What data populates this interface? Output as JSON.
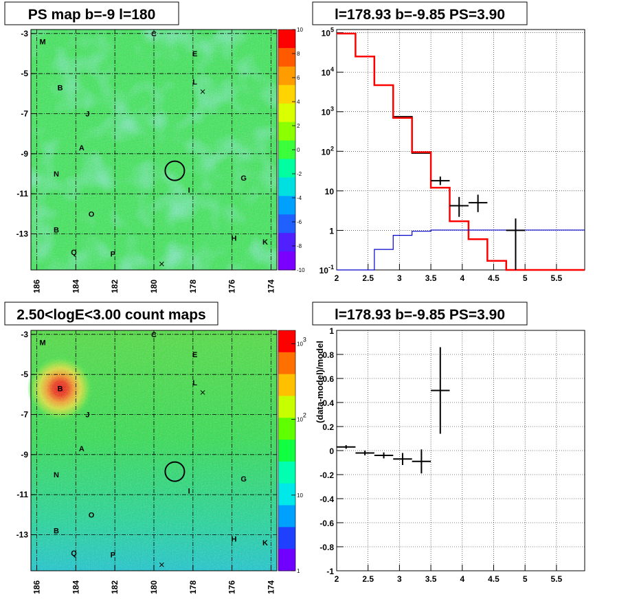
{
  "chart_data": [
    {
      "type": "heatmap",
      "title": "PS map b=-9 l=180",
      "x_ticks": [
        "186",
        "184",
        "182",
        "180",
        "178",
        "176",
        "174"
      ],
      "y_ticks": [
        "-3",
        "-5",
        "-7",
        "-9",
        "-11",
        "-13"
      ],
      "xlim": [
        186.3,
        173.7
      ],
      "ylim": [
        -14.8,
        -2.8
      ],
      "colorbar": {
        "scale": "linear",
        "range": [
          -10,
          10
        ],
        "ticks": [
          "10",
          "8",
          "6",
          "4",
          "2",
          "0",
          "-2",
          "-4",
          "-6",
          "-8",
          "-10"
        ]
      },
      "grid": true,
      "circle": {
        "l": 178.93,
        "b": -9.85
      },
      "source_labels": [
        {
          "text": "M",
          "l": 185.7,
          "b": -3.4
        },
        {
          "text": "C",
          "l": 180.0,
          "b": -3.0
        },
        {
          "text": "E",
          "l": 177.9,
          "b": -4.0
        },
        {
          "text": "L",
          "l": 177.9,
          "b": -5.4
        },
        {
          "text": "B",
          "l": 184.8,
          "b": -5.7
        },
        {
          "text": "J",
          "l": 183.4,
          "b": -7.0
        },
        {
          "text": "A",
          "l": 183.7,
          "b": -8.7
        },
        {
          "text": "N",
          "l": 185.0,
          "b": -10.0
        },
        {
          "text": "G",
          "l": 175.4,
          "b": -10.2
        },
        {
          "text": "I",
          "l": 178.2,
          "b": -10.8
        },
        {
          "text": "O",
          "l": 183.2,
          "b": -12.0
        },
        {
          "text": "B",
          "l": 185.0,
          "b": -12.8
        },
        {
          "text": "H",
          "l": 175.9,
          "b": -13.2
        },
        {
          "text": "K",
          "l": 174.3,
          "b": -13.4
        },
        {
          "text": "Q",
          "l": 184.1,
          "b": -13.9
        },
        {
          "text": "P",
          "l": 182.1,
          "b": -14.0
        }
      ],
      "crosses": [
        {
          "l": 177.5,
          "b": -5.9
        },
        {
          "l": 179.6,
          "b": -14.5
        }
      ]
    },
    {
      "type": "line",
      "title": "l=178.93 b=-9.85 PS=3.90",
      "xlim": [
        2.0,
        5.95
      ],
      "ylim": [
        0.1,
        120000
      ],
      "y_scale": "log",
      "x_ticks": [
        "2",
        "2.5",
        "3",
        "3.5",
        "4",
        "4.5",
        "5",
        "5.5"
      ],
      "y_ticks": [
        "10^-1",
        "1",
        "10",
        "10^2",
        "10^3",
        "10^4",
        "10^5"
      ],
      "grid": true,
      "series": [
        {
          "color": "#000000",
          "style": "step",
          "edges": [
            2.0,
            2.3,
            2.6,
            2.9,
            3.2,
            3.5
          ],
          "values": [
            95000,
            25000,
            4700,
            750,
            90
          ]
        },
        {
          "color": "#ff0000",
          "style": "step",
          "edges": [
            2.0,
            2.3,
            2.6,
            2.9,
            3.2,
            3.5,
            3.8,
            4.1,
            4.4,
            4.7,
            5.0,
            5.95
          ],
          "values": [
            95000,
            25000,
            4700,
            700,
            95,
            12,
            1.7,
            0.6,
            0.17,
            0.1,
            0.1
          ]
        },
        {
          "color": "#0000cc",
          "style": "step",
          "edges": [
            2.0,
            2.6,
            2.9,
            3.2,
            3.5,
            5.95
          ],
          "values": [
            0.03,
            0.33,
            0.75,
            0.95,
            1.02
          ]
        }
      ],
      "errorbars": [
        {
          "x": 3.65,
          "xerr": 0.15,
          "y": 18,
          "ylo": 14,
          "yhi": 23
        },
        {
          "x": 3.95,
          "xerr": 0.15,
          "y": 4.2,
          "ylo": 2.2,
          "yhi": 7.0
        },
        {
          "x": 4.25,
          "xerr": 0.15,
          "y": 5.0,
          "ylo": 2.9,
          "yhi": 8.0
        },
        {
          "x": 4.85,
          "xerr": 0.15,
          "y": 1.0,
          "ylo": 0.1,
          "yhi": 2.0
        }
      ]
    },
    {
      "type": "heatmap",
      "title": "2.50<logE<3.00 count maps",
      "x_ticks": [
        "186",
        "184",
        "182",
        "180",
        "178",
        "176",
        "174"
      ],
      "y_ticks": [
        "-3",
        "-5",
        "-7",
        "-9",
        "-11",
        "-13"
      ],
      "xlim": [
        186.3,
        173.7
      ],
      "ylim": [
        -14.8,
        -2.8
      ],
      "colorbar": {
        "scale": "log",
        "range": [
          1,
          1500
        ],
        "ticks": [
          "10^3",
          "10^2",
          "10",
          "1"
        ]
      },
      "grid": true,
      "bright_source": {
        "l": 184.8,
        "b": -5.7
      },
      "circle": {
        "l": 178.93,
        "b": -9.85
      }
    },
    {
      "type": "scatter",
      "title": "l=178.93 b=-9.85 PS=3.90",
      "ylabel": "(data-model)/model",
      "xlim": [
        2.0,
        5.95
      ],
      "ylim": [
        -1,
        1
      ],
      "x_ticks": [
        "2",
        "2.5",
        "3",
        "3.5",
        "4",
        "4.5",
        "5",
        "5.5"
      ],
      "y_ticks": [
        "1",
        "0.8",
        "0.6",
        "0.4",
        "0.2",
        "0",
        "-0.2",
        "-0.4",
        "-0.6",
        "-0.8",
        "-1"
      ],
      "grid": true,
      "points": [
        {
          "x": 2.15,
          "xerr": 0.15,
          "y": 0.03,
          "yerr": 0.015
        },
        {
          "x": 2.45,
          "xerr": 0.15,
          "y": -0.02,
          "yerr": 0.02
        },
        {
          "x": 2.75,
          "xerr": 0.15,
          "y": -0.04,
          "yerr": 0.025
        },
        {
          "x": 3.05,
          "xerr": 0.15,
          "y": -0.07,
          "yerr": 0.05
        },
        {
          "x": 3.35,
          "xerr": 0.15,
          "y": -0.09,
          "yerr": 0.1
        },
        {
          "x": 3.65,
          "xerr": 0.15,
          "y": 0.5,
          "yerr": 0.36
        }
      ]
    }
  ]
}
